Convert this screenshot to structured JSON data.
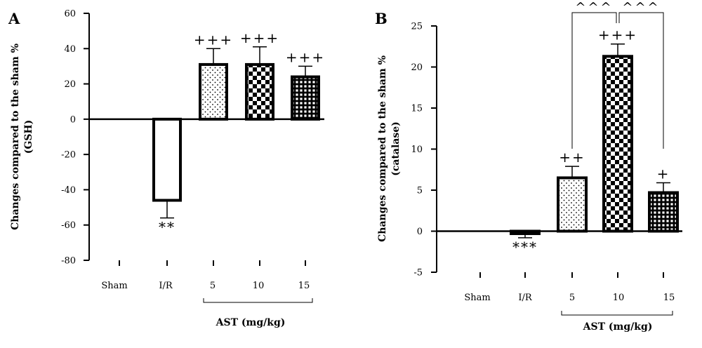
{
  "chart_data": [
    {
      "panel": "A",
      "type": "bar",
      "ylabel": "Changes compared to the sham %\n(GSH)",
      "ylim": [
        -80,
        60
      ],
      "yticks": [
        "60",
        "40",
        "20",
        "0",
        "-20",
        "-40",
        "-60",
        "-80"
      ],
      "categories": [
        "Sham",
        "I/R",
        "5",
        "10",
        "15"
      ],
      "values": [
        0,
        -46,
        31,
        31,
        24
      ],
      "errors": [
        0,
        10,
        9,
        10,
        6
      ],
      "patterns": [
        "none",
        "white",
        "dots",
        "checker",
        "grid"
      ],
      "annotations": [
        "",
        "**",
        "+++",
        "+++",
        "+++"
      ],
      "group_label": "AST (mg/kg)",
      "grid": false
    },
    {
      "panel": "B",
      "type": "bar",
      "ylabel": "Changes compared to the sham %\n(catalase)",
      "ylim": [
        -5,
        25
      ],
      "yticks": [
        "25",
        "20",
        "15",
        "10",
        "5",
        "0",
        "-5"
      ],
      "categories": [
        "Sham",
        "I/R",
        "5",
        "10",
        "15"
      ],
      "values": [
        0,
        -0.3,
        6.5,
        21.3,
        4.7
      ],
      "errors": [
        0,
        0.5,
        1.4,
        1.5,
        1.2
      ],
      "patterns": [
        "none",
        "white",
        "dots",
        "checker",
        "grid"
      ],
      "annotations": [
        "",
        "***",
        "++",
        "+++",
        "+"
      ],
      "group_label": "AST (mg/kg)",
      "brackets": [
        {
          "from": 2,
          "to": 3,
          "label": "^^^"
        },
        {
          "from": 3,
          "to": 4,
          "label": "^^^"
        }
      ],
      "grid": false
    }
  ]
}
